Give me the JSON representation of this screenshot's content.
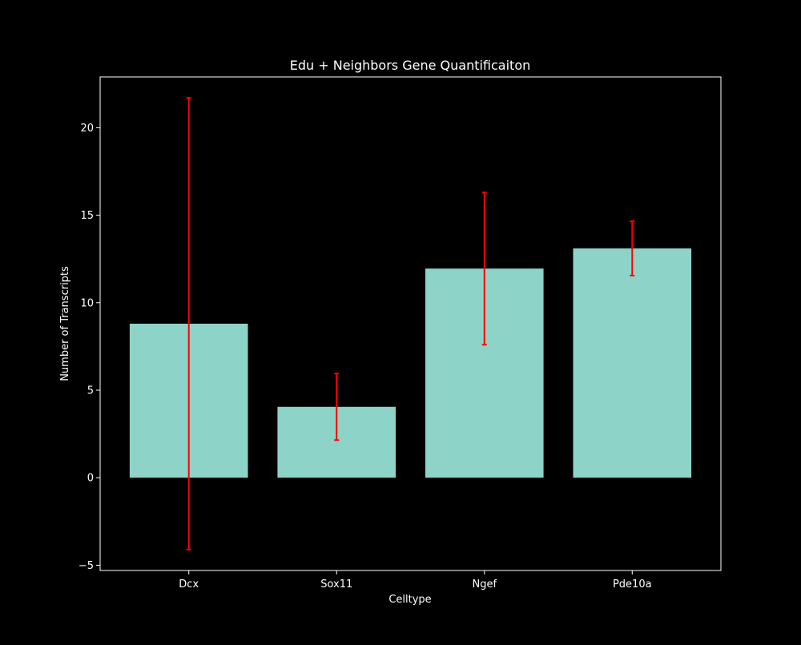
{
  "chart_data": {
    "type": "bar",
    "title": "Edu + Neighbors Gene Quantificaiton",
    "xlabel": "Celltype",
    "ylabel": "Number of Transcripts",
    "categories": [
      "Dcx",
      "Sox11",
      "Ngef",
      "Pde10a"
    ],
    "values": [
      8.8,
      4.05,
      11.95,
      13.1
    ],
    "error_low": [
      -4.1,
      2.15,
      7.6,
      11.55
    ],
    "error_high": [
      21.7,
      5.95,
      16.3,
      14.65
    ],
    "ylim": [
      -5.3,
      22.9
    ],
    "yticks": [
      -5,
      0,
      5,
      10,
      15,
      20
    ],
    "grid": false,
    "legend": "none",
    "colors": {
      "background": "#000000",
      "bar": "#8dd3c7",
      "error_bar": "#ff0000",
      "axis": "#ffffff",
      "text": "#ffffff"
    }
  }
}
